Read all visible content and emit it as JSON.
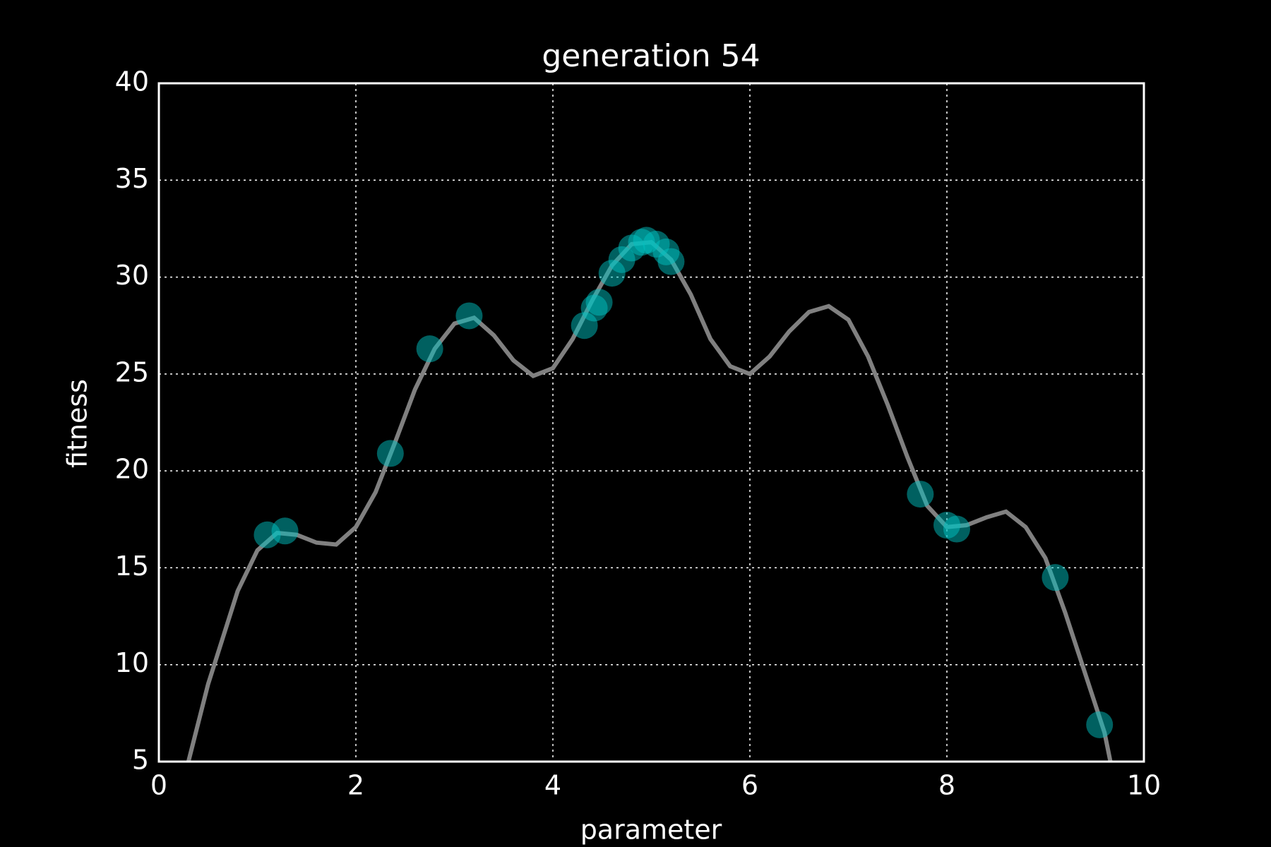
{
  "chart_data": {
    "type": "scatter",
    "title": "generation 54",
    "xlabel": "parameter",
    "ylabel": "fitness",
    "xlim": [
      0,
      10
    ],
    "xticks": [
      0,
      2,
      4,
      6,
      8,
      10
    ],
    "ylim": [
      5,
      40
    ],
    "yticks": [
      5,
      10,
      15,
      20,
      25,
      30,
      35,
      40
    ],
    "grid": true,
    "curve": {
      "color": "#808080",
      "x": [
        0.3,
        0.5,
        0.8,
        1.0,
        1.2,
        1.4,
        1.6,
        1.8,
        2.0,
        2.2,
        2.4,
        2.6,
        2.8,
        3.0,
        3.2,
        3.4,
        3.6,
        3.8,
        4.0,
        4.2,
        4.4,
        4.6,
        4.8,
        5.0,
        5.2,
        5.4,
        5.6,
        5.8,
        6.0,
        6.2,
        6.4,
        6.6,
        6.8,
        7.0,
        7.2,
        7.4,
        7.6,
        7.8,
        8.0,
        8.2,
        8.4,
        8.6,
        8.8,
        9.0,
        9.2,
        9.4,
        9.6,
        9.66
      ],
      "values": [
        5,
        9.0,
        13.8,
        15.9,
        16.8,
        16.7,
        16.3,
        16.2,
        17.1,
        18.9,
        21.5,
        24.2,
        26.3,
        27.6,
        27.9,
        27.0,
        25.7,
        24.9,
        25.3,
        26.8,
        28.8,
        30.6,
        31.7,
        31.8,
        30.9,
        29.1,
        26.8,
        25.4,
        25.0,
        25.9,
        27.2,
        28.2,
        28.5,
        27.8,
        25.9,
        23.4,
        20.7,
        18.2,
        17.1,
        17.2,
        17.6,
        17.9,
        17.1,
        15.5,
        12.7,
        9.6,
        6.5,
        5
      ]
    },
    "points": {
      "color": "#00bfbf",
      "x": [
        1.1,
        1.28,
        2.35,
        2.75,
        3.15,
        4.32,
        4.42,
        4.47,
        4.6,
        4.7,
        4.8,
        4.9,
        4.95,
        5.05,
        5.15,
        5.2,
        7.73,
        8.0,
        8.1,
        9.1,
        9.55
      ],
      "values": [
        16.7,
        16.9,
        20.9,
        26.3,
        28.0,
        27.5,
        28.4,
        28.7,
        30.2,
        30.9,
        31.5,
        31.8,
        31.9,
        31.7,
        31.3,
        30.8,
        18.8,
        17.2,
        17.0,
        14.5,
        6.9
      ]
    }
  }
}
